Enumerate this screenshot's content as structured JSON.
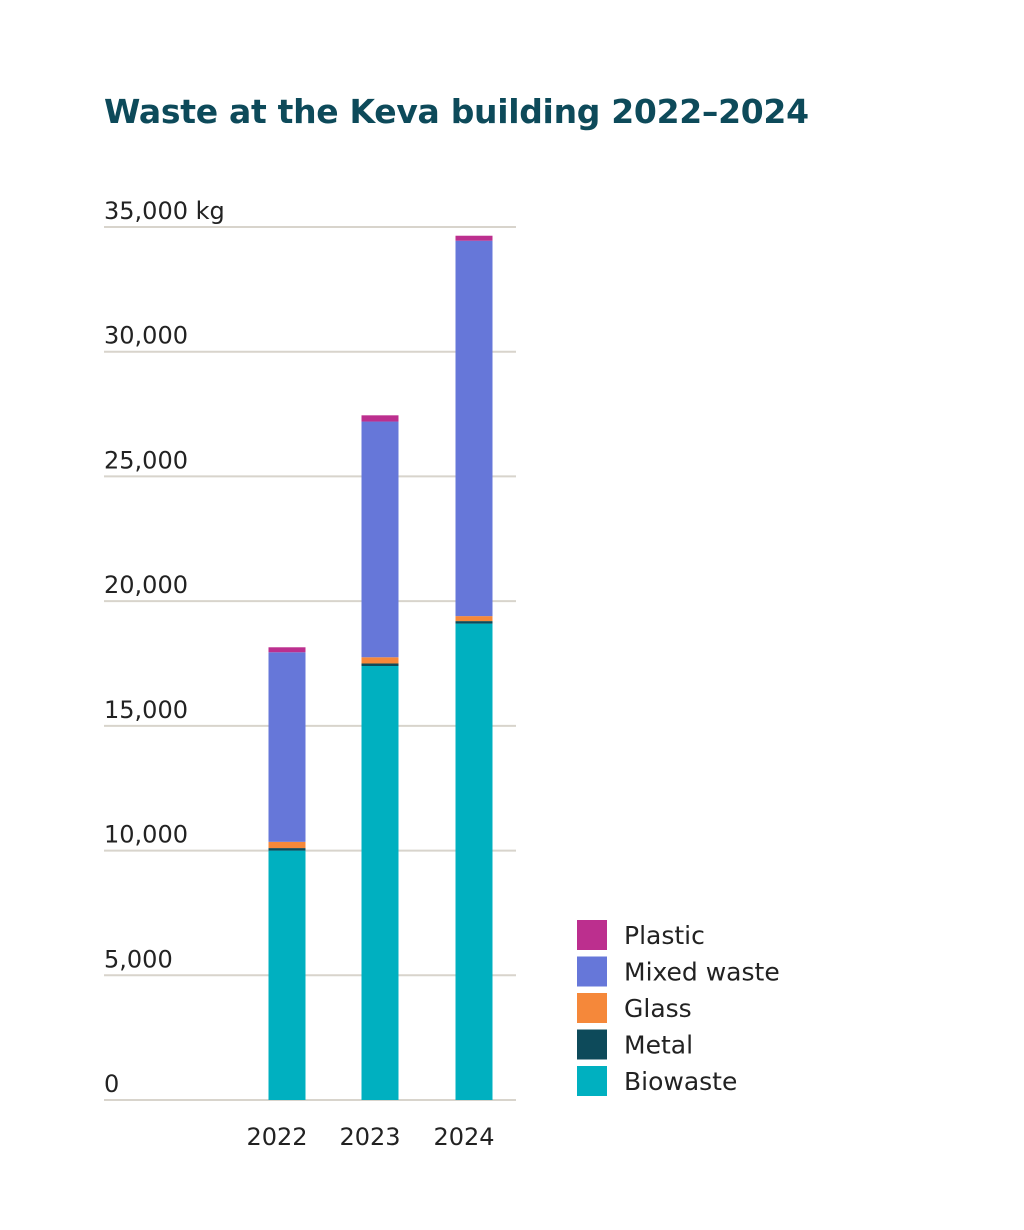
{
  "chart_data": {
    "type": "bar",
    "stacked": true,
    "title": "Waste at the Keva building 2022–2024",
    "categories": [
      "2022",
      "2023",
      "2024"
    ],
    "ylim": [
      0,
      35000
    ],
    "yticks": [
      0,
      5000,
      10000,
      15000,
      20000,
      25000,
      30000,
      35000
    ],
    "ytick_labels": [
      "0",
      "5,000",
      "10,000",
      "15,000",
      "20,000",
      "25,000",
      "30,000",
      "35,000 kg"
    ],
    "grid": true,
    "legend_position": "bottom-right",
    "series": [
      {
        "name": "Biowaste",
        "color": "#00b0c0",
        "values": [
          10000,
          17400,
          19100
        ]
      },
      {
        "name": "Metal",
        "color": "#0d4a5a",
        "values": [
          100,
          100,
          100
        ]
      },
      {
        "name": "Glass",
        "color": "#f5883a",
        "values": [
          250,
          250,
          200
        ]
      },
      {
        "name": "Mixed waste",
        "color": "#6677d9",
        "values": [
          7600,
          9450,
          15050
        ]
      },
      {
        "name": "Plastic",
        "color": "#bc2f8e",
        "values": [
          200,
          250,
          200
        ]
      }
    ],
    "legend_order": [
      "Plastic",
      "Mixed waste",
      "Glass",
      "Metal",
      "Biowaste"
    ]
  }
}
